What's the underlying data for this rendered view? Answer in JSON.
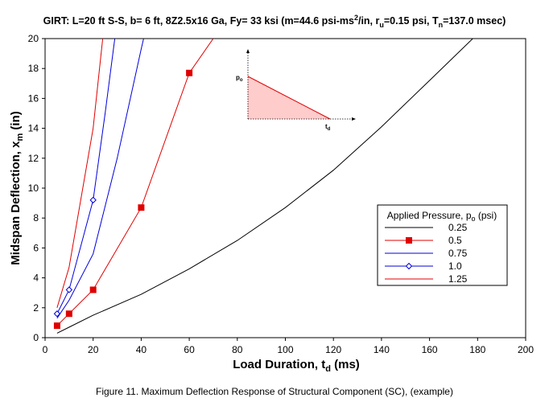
{
  "figure": {
    "caption": "Figure 11. Maximum Deflection Response of Structural Component (SC),   (example)"
  },
  "chart_data": {
    "type": "line",
    "title": "GIRT: L=20 ft S-S, b= 6 ft, 8Z2.5x16 Ga, Fy= 33 ksi (m=44.6 psi-ms²/in, r_u=0.15 psi, T_n=137.0 msec)",
    "title_parts": {
      "main": "GIRT: L=20 ft S-S, b= 6 ft, 8Z2.5x16 Ga, Fy= 33 ksi (m=44.6 psi-ms",
      "sup": "2",
      "mid": "/in, r",
      "sub1": "u",
      "mid2": "=0.15 psi, T",
      "sub2": "n",
      "end": "=137.0 msec)"
    },
    "xlabel": {
      "main": "Load Duration, t",
      "sub": "d",
      "end": " (ms)"
    },
    "ylabel": {
      "main": "Midspan Deflection, x",
      "sub": "m",
      "end": " (in)"
    },
    "xlim": [
      0,
      200
    ],
    "ylim": [
      0,
      20
    ],
    "xticks": [
      0,
      20,
      40,
      60,
      80,
      100,
      120,
      140,
      160,
      180,
      200
    ],
    "yticks": [
      0,
      2,
      4,
      6,
      8,
      10,
      12,
      14,
      16,
      18,
      20
    ],
    "grid": false,
    "legend": {
      "position": "right",
      "title": {
        "main": "Applied Pressure, p",
        "sub": "o",
        "end": " (psi)"
      }
    },
    "series": [
      {
        "name": "0.25",
        "color": "#000000",
        "marker": "none",
        "x": [
          5,
          10,
          20,
          40,
          60,
          80,
          100,
          120,
          140,
          160,
          178
        ],
        "y": [
          0.3,
          0.7,
          1.5,
          2.9,
          4.6,
          6.5,
          8.7,
          11.2,
          14.1,
          17.2,
          20.0
        ]
      },
      {
        "name": "0.5",
        "color": "#e00000",
        "marker": "square",
        "x": [
          5,
          10,
          20,
          40,
          60,
          70
        ],
        "y": [
          0.8,
          1.6,
          3.2,
          8.7,
          17.7,
          20.0
        ],
        "marker_indices": [
          0,
          1,
          2,
          3,
          4
        ]
      },
      {
        "name": "0.75",
        "color": "#0000dd",
        "marker": "none",
        "x": [
          5,
          10,
          20,
          30,
          40,
          41
        ],
        "y": [
          1.3,
          2.5,
          5.6,
          12.0,
          19.3,
          20.0
        ]
      },
      {
        "name": "1.0",
        "color": "#0000dd",
        "marker": "diamond",
        "x": [
          5,
          10,
          20,
          25,
          29
        ],
        "y": [
          1.6,
          3.2,
          9.2,
          15.0,
          20.0
        ],
        "marker_indices": [
          0,
          1,
          2
        ]
      },
      {
        "name": "1.25",
        "color": "#e00000",
        "marker": "none",
        "x": [
          5,
          10,
          20,
          24
        ],
        "y": [
          2.0,
          4.7,
          14.0,
          20.0
        ]
      }
    ],
    "inset": {
      "description_labels": {
        "p": "p",
        "p_sub": "o",
        "t": "t",
        "t_sub": "d"
      },
      "fill": "#ffcccc",
      "edge": "#e00000"
    }
  }
}
